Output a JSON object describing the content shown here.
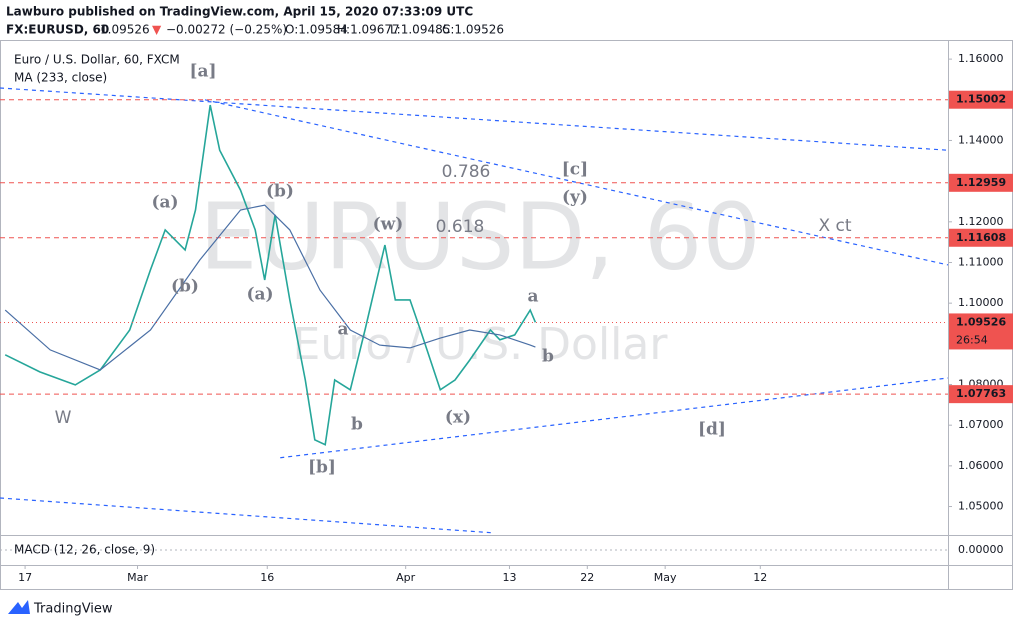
{
  "header": {
    "author_line": "Lawburo published on TradingView.com, April 15, 2020 07:33:09 UTC",
    "symbol": "FX:EURUSD, 60",
    "last": "1.09526",
    "change": "−0.00272 (−0.25%)",
    "open": "O:1.09584",
    "high": "H:1.09677",
    "low": "L:1.09485",
    "close": "C:1.09526"
  },
  "chart_data": {
    "type": "line",
    "watermark": [
      "EURUSD, 60",
      "Euro / U.S. Dollar"
    ],
    "xlim": [
      14.1,
      123.7
    ],
    "ylim": [
      1.043,
      1.1647
    ],
    "xticks": [
      17,
      {
        "value": 30,
        "label": "Mar"
      },
      {
        "value": 45,
        "label": "16"
      },
      {
        "value": 61,
        "label": "Apr"
      },
      {
        "value": 73,
        "label": "13"
      },
      {
        "value": 82,
        "label": "22"
      },
      {
        "value": 91,
        "label": "May"
      },
      {
        "value": 102,
        "label": "12"
      }
    ],
    "yticks": [
      {
        "value": 1.16,
        "label": "1.16000"
      },
      {
        "value": 1.14,
        "label": "1.14000"
      },
      {
        "value": 1.12,
        "label": "1.12000"
      },
      {
        "value": 1.11,
        "label": "1.11000"
      },
      {
        "value": 1.1,
        "label": "1.10000"
      },
      {
        "value": 1.08,
        "label": "1.08000"
      },
      {
        "value": 1.07,
        "label": "1.07000"
      },
      {
        "value": 1.06,
        "label": "1.06000"
      },
      {
        "value": 1.05,
        "label": "1.05000"
      }
    ],
    "series": [
      {
        "name": "Euro / U.S. Dollar, 60, FXCM",
        "color": "#26a69a",
        "x": [
          14.7,
          18.7,
          22.8,
          25.7,
          29.1,
          31.5,
          33.2,
          35.5,
          36.7,
          38.4,
          39.5,
          41.9,
          43.6,
          44.7,
          45.9,
          47.6,
          49.4,
          50.5,
          51.7,
          52.8,
          54.6,
          56.3,
          58.6,
          59.8,
          61.5,
          62.7,
          65.0,
          66.7,
          68.4,
          70.8,
          71.9,
          73.6,
          75.4,
          76.0
        ],
        "values": [
          1.0873,
          1.0831,
          1.0799,
          1.0836,
          1.0934,
          1.1082,
          1.118,
          1.1131,
          1.1229,
          1.1487,
          1.1376,
          1.1278,
          1.118,
          1.1057,
          1.1217,
          1.1008,
          1.0811,
          1.0664,
          1.0652,
          1.0811,
          1.0787,
          1.0934,
          1.1143,
          1.1008,
          1.1008,
          1.0934,
          1.0787,
          1.0811,
          1.086,
          1.0934,
          1.091,
          1.0922,
          1.0983,
          1.0953
        ]
      },
      {
        "name": "MA (233, close)",
        "color": "#4a6fa5",
        "x": [
          14.7,
          19.9,
          25.7,
          31.5,
          37.2,
          41.9,
          44.7,
          47.6,
          51.1,
          54.6,
          58.0,
          61.5,
          65.0,
          68.4,
          71.9,
          75.4,
          76.0
        ],
        "values": [
          1.0983,
          1.0885,
          1.0836,
          1.0934,
          1.1106,
          1.1229,
          1.1241,
          1.118,
          1.1032,
          1.0934,
          1.0897,
          1.089,
          1.0914,
          1.0934,
          1.0922,
          1.0897,
          1.0892
        ]
      }
    ],
    "levels": [
      {
        "value": 1.15002,
        "color": "#ef5350"
      },
      {
        "value": 1.12959,
        "color": "#ef5350"
      },
      {
        "value": 1.11608,
        "color": "#ef5350"
      },
      {
        "value": 1.07763,
        "color": "#ef5350"
      }
    ],
    "last_price": {
      "value": 1.09526,
      "countdown": "26:54",
      "color": "#ef5350"
    },
    "trendlines": [
      {
        "x": [
          14.1,
          123.7
        ],
        "values": [
          1.1529,
          1.1376
        ]
      },
      {
        "x": [
          37.8,
          123.7
        ],
        "values": [
          1.15,
          1.1094
        ]
      },
      {
        "x": [
          46.5,
          123.7
        ],
        "values": [
          1.062,
          1.0816
        ]
      },
      {
        "x": [
          14.1,
          71.3
        ],
        "values": [
          1.0521,
          1.0435
        ]
      }
    ],
    "annotations": [
      "[a]",
      "(a)",
      "(b)",
      "(b)",
      "(a)",
      "(w)",
      "a",
      "b",
      "[b]",
      "(x)",
      "0.786",
      "0.618",
      "[c]",
      "(y)",
      "X ct",
      "a",
      "b",
      "[d]",
      "W"
    ],
    "macd": {
      "title": "MACD (12, 26, close, 9)",
      "ylim": [
        -0.004,
        0.004
      ],
      "yticks": [
        {
          "value": 0,
          "label": "0.00000"
        }
      ]
    }
  },
  "footer": {
    "brand": "TradingView"
  }
}
